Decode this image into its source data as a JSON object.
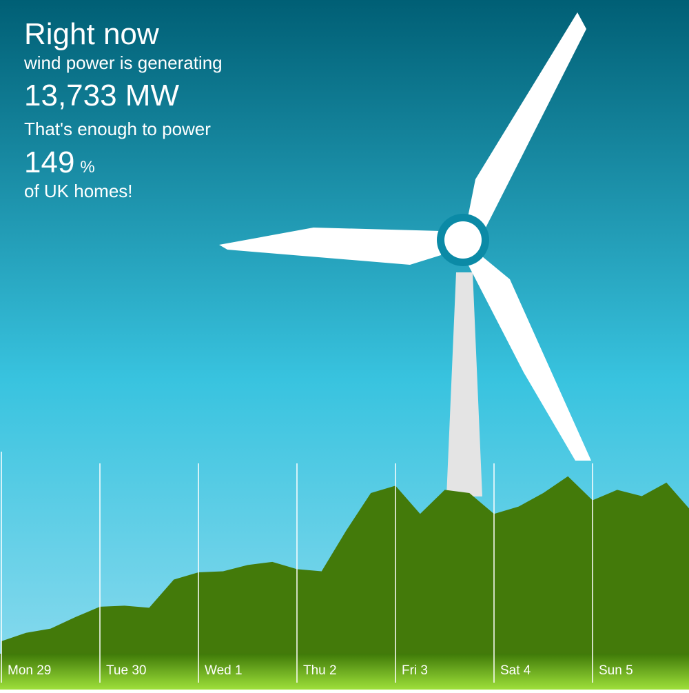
{
  "header": {
    "line1": "Right now",
    "line2": "wind power is generating",
    "power": "13,733 MW",
    "line3": "That's enough to power",
    "percent": "149",
    "percent_unit": "%",
    "line4": "of UK homes!"
  },
  "chart_data": {
    "type": "area",
    "color": "#437a0a",
    "x": [
      0,
      0.25,
      0.5,
      0.75,
      1,
      1.25,
      1.5,
      1.75,
      2,
      2.25,
      2.5,
      2.75,
      3,
      3.25,
      3.5,
      3.75,
      4,
      4.25,
      4.5,
      4.75,
      5,
      5.25,
      5.5,
      5.75,
      6,
      6.25,
      6.5,
      6.75,
      7
    ],
    "values": [
      1200,
      2000,
      2400,
      3500,
      4500,
      4600,
      4400,
      7100,
      7800,
      7900,
      8500,
      8800,
      8100,
      7900,
      11800,
      15400,
      16100,
      13400,
      15700,
      15400,
      13400,
      14100,
      15400,
      17000,
      14700,
      15700,
      15100,
      16400,
      13700
    ],
    "xlim": [
      0,
      7
    ],
    "ylim": [
      0,
      60000
    ],
    "xticks": [
      {
        "value": 0,
        "label": "Mon 29"
      },
      {
        "value": 1,
        "label": "Tue 30"
      },
      {
        "value": 2,
        "label": "Wed 1"
      },
      {
        "value": 3,
        "label": "Thu 2"
      },
      {
        "value": 4,
        "label": "Fri 3"
      },
      {
        "value": 5,
        "label": "Sat 4"
      },
      {
        "value": 6,
        "label": "Sun 5"
      }
    ],
    "grid": true
  }
}
